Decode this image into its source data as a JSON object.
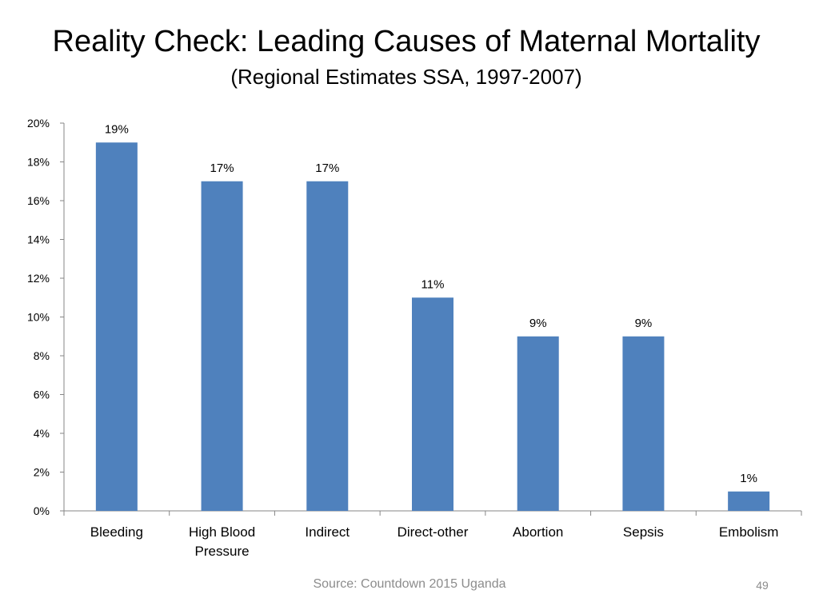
{
  "slide": {
    "title": "Reality Check: Leading Causes of Maternal Mortality",
    "subtitle": "(Regional Estimates SSA, 1997-2007)",
    "source": "Source: Countdown 2015 Uganda",
    "page_number": "49"
  },
  "chart_data": {
    "type": "bar",
    "title": "",
    "xlabel": "",
    "ylabel": "",
    "categories": [
      [
        "Bleeding"
      ],
      [
        "High Blood",
        "Pressure"
      ],
      [
        "Indirect"
      ],
      [
        "Direct-other"
      ],
      [
        "Abortion"
      ],
      [
        "Sepsis"
      ],
      [
        "Embolism"
      ]
    ],
    "values": [
      19,
      17,
      17,
      11,
      9,
      9,
      1
    ],
    "data_labels": [
      "19%",
      "17%",
      "17%",
      "11%",
      "9%",
      "9%",
      "1%"
    ],
    "ylim": [
      0,
      20
    ],
    "y_ticks": [
      0,
      2,
      4,
      6,
      8,
      10,
      12,
      14,
      16,
      18,
      20
    ],
    "y_tick_labels": [
      "0%",
      "2%",
      "4%",
      "6%",
      "8%",
      "10%",
      "12%",
      "14%",
      "16%",
      "18%",
      "20%"
    ],
    "grid": false,
    "legend": "none",
    "bar_color": "#4f81bd",
    "axis_color": "#868686"
  }
}
